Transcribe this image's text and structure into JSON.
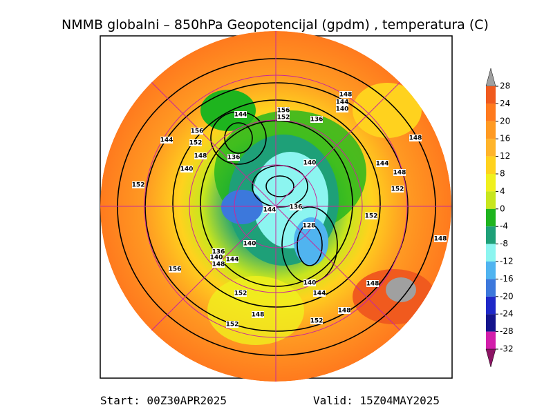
{
  "map": {
    "title": "NMMB globalni – 850hPa Geopotencijal (gpdm) , temperatura (C)",
    "colorbar": {
      "ticks": [
        28,
        24,
        20,
        16,
        12,
        8,
        4,
        0,
        -4,
        -8,
        -12,
        -16,
        -20,
        -24,
        -28,
        -32
      ],
      "colors": [
        "#a0a0a0",
        "#f05a1e",
        "#ff7a1e",
        "#ff9a22",
        "#ffb42a",
        "#ffd21e",
        "#f0f01e",
        "#c8e61e",
        "#1eb41e",
        "#1ea078",
        "#8cf5f0",
        "#50b4f0",
        "#3c78dc",
        "#1e28c8",
        "#14148c",
        "#d21eaa",
        "#8c1464"
      ]
    },
    "contour_labels": [
      148,
      144,
      140,
      156,
      152,
      144,
      136,
      156,
      144,
      152,
      148,
      136,
      148,
      140,
      144,
      140,
      148,
      152,
      152,
      136,
      144,
      152,
      128,
      148,
      140,
      136,
      140,
      144,
      148,
      156,
      140,
      148,
      152,
      144,
      148,
      148,
      152,
      152
    ],
    "footer": {
      "start": "Start: 00Z30APR2025",
      "valid": "Valid: 15Z04MAY2025"
    }
  }
}
